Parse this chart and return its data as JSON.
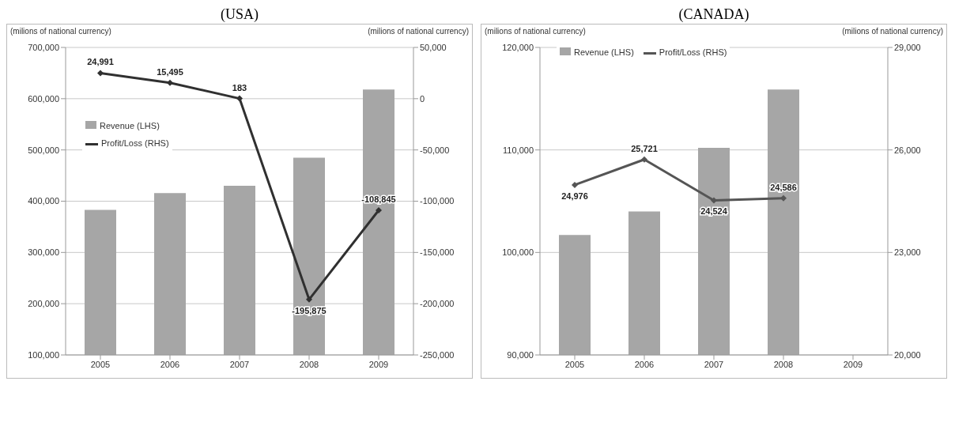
{
  "chart_data": [
    {
      "type": "bar",
      "title": "(USA)",
      "ylabel": "(milions of national currency)",
      "y2label": "(milions of national currency)",
      "categories": [
        "2005",
        "2006",
        "2007",
        "2008",
        "2009"
      ],
      "series": [
        {
          "name": "Revenue (LHS)",
          "color": "#a6a6a6",
          "values": [
            383000,
            416000,
            430000,
            485000,
            618000
          ]
        },
        {
          "name": "Profit/Loss (RHS)",
          "type": "line",
          "axis": "y2",
          "color": "#303030",
          "marker": "diamond",
          "values": [
            24991,
            15495,
            183,
            -195875,
            -108845
          ],
          "value_labels": [
            "24,991",
            "15,495",
            "183",
            "-195,875",
            "-108,845"
          ]
        }
      ],
      "ylim": [
        100000,
        700000
      ],
      "yticks": [
        {
          "value": 100000,
          "label": "100,000"
        },
        {
          "value": 200000,
          "label": "200,000"
        },
        {
          "value": 300000,
          "label": "300,000"
        },
        {
          "value": 400000,
          "label": "400,000"
        },
        {
          "value": 500000,
          "label": "500,000"
        },
        {
          "value": 600000,
          "label": "600,000"
        },
        {
          "value": 700000,
          "label": "700,000"
        }
      ],
      "y2lim": [
        -250000,
        50000
      ],
      "y2ticks": [
        {
          "value": -250000,
          "label": "-250,000"
        },
        {
          "value": -200000,
          "label": "-200,000"
        },
        {
          "value": -150000,
          "label": "-150,000"
        },
        {
          "value": -100000,
          "label": "-100,000"
        },
        {
          "value": -50000,
          "label": "-50,000"
        },
        0,
        {
          "value": 50000,
          "label": "50,000"
        }
      ],
      "grid": "y",
      "legend": "left"
    },
    {
      "type": "bar",
      "title": "(CANADA)",
      "ylabel": "(milions of national  currency)",
      "y2label": "(milions of national  currency)",
      "categories": [
        "2005",
        "2006",
        "2007",
        "2008",
        "2009"
      ],
      "series": [
        {
          "name": "Revenue (LHS)",
          "color": "#a6a6a6",
          "values": [
            101700,
            104000,
            110200,
            115900,
            null
          ]
        },
        {
          "name": "Profit/Loss (RHS)",
          "type": "line",
          "axis": "y2",
          "color": "#555555",
          "marker": "diamond",
          "values": [
            24976,
            25721,
            24524,
            24586,
            null
          ],
          "value_labels": [
            "24,976",
            "25,721",
            "24,524",
            "24,586",
            null
          ]
        }
      ],
      "ylim": [
        90000,
        120000
      ],
      "yticks": [
        {
          "value": 90000,
          "label": "90,000"
        },
        {
          "value": 100000,
          "label": "100,000"
        },
        {
          "value": 110000,
          "label": "110,000"
        },
        {
          "value": 120000,
          "label": "120,000"
        }
      ],
      "y2lim": [
        20000,
        29000
      ],
      "y2ticks": [
        {
          "value": 20000,
          "label": "20,000"
        },
        {
          "value": 23000,
          "label": "23,000"
        },
        {
          "value": 26000,
          "label": "26,000"
        },
        {
          "value": 29000,
          "label": "29,000"
        }
      ],
      "grid": "y",
      "legend": "top left"
    }
  ]
}
